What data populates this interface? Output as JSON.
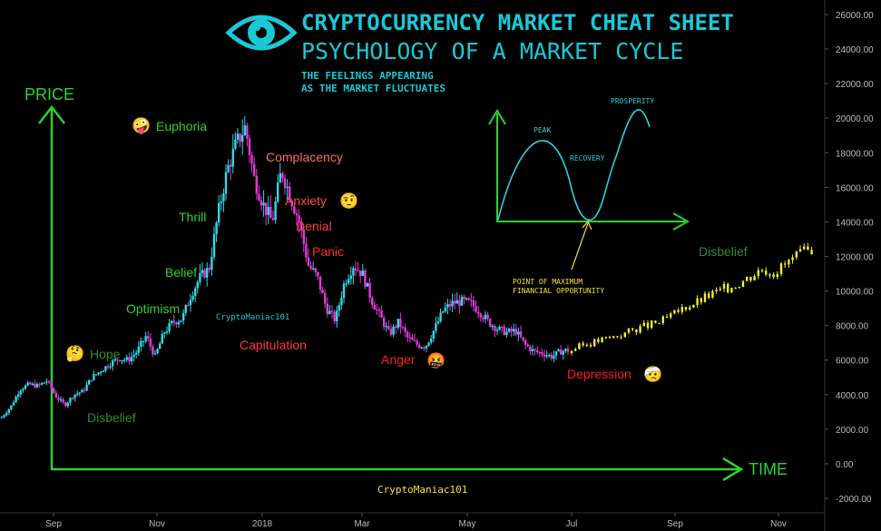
{
  "header": {
    "title": "CRYPTOCURRENCY MARKET CHEAT SHEET",
    "subtitle": "PSYCHOLOGY OF A MARKET CYCLE",
    "tagline_line1": "THE FEELINGS APPEARING",
    "tagline_line2": "AS THE MARKET FLUCTUATES",
    "logo_icon": "eye-icon"
  },
  "axes_labels": {
    "price": "PRICE",
    "time": "TIME"
  },
  "watermarks": {
    "top": "CryptoManiac101",
    "bottom": "CryptoManiac101"
  },
  "inset": {
    "peak": "PEAK",
    "recovery": "RECOVERY",
    "prosperity": "PROSPERITY",
    "note_line1": "POINT OF MAXIMUM",
    "note_line2": "FINANCIAL OPPORTUNITY"
  },
  "phases": [
    {
      "label": "Euphoria",
      "emoji": "🤪",
      "color": "#2fd12f"
    },
    {
      "label": "Thrill",
      "emoji": "😁",
      "color": "#2fd12f"
    },
    {
      "label": "Belief",
      "emoji": "😃",
      "color": "#2fd12f"
    },
    {
      "label": "Optimism",
      "emoji": "😊",
      "color": "#2fd12f"
    },
    {
      "label": "Hope",
      "emoji": "🤔",
      "color": "#2e8b2e"
    },
    {
      "label": "Disbelief",
      "emoji": "😟",
      "color": "#2e8b2e"
    },
    {
      "label": "Complacency",
      "emoji": "😌",
      "color": "#ff6b6b"
    },
    {
      "label": "Anxiety",
      "emoji": "🤨",
      "color": "#ff4d4d"
    },
    {
      "label": "Denial",
      "emoji": "😥",
      "color": "#ff4040"
    },
    {
      "label": "Panic",
      "emoji": "😱",
      "color": "#ff2a2a"
    },
    {
      "label": "Capitulation",
      "emoji": "😶",
      "color": "#ff3a3a"
    },
    {
      "label": "Anger",
      "emoji": "🤬",
      "color": "#ff2020"
    },
    {
      "label": "Depression",
      "emoji": "🤕",
      "color": "#ff1a1a"
    },
    {
      "label": "Disbelief",
      "emoji": "😟",
      "color": "#2e8b2e"
    }
  ],
  "colors": {
    "background": "#000000",
    "title": "#19c9d6",
    "axis_green": "#2fd12f",
    "watermark": "#f2e23a",
    "up_candle": "#31d8e6",
    "down_candle": "#e23ad8",
    "projection": "#f5f031"
  },
  "chart_data": {
    "type": "line",
    "x_ticks": [
      "Sep",
      "Nov",
      "2018",
      "Mar",
      "May",
      "Jul",
      "Sep",
      "Nov"
    ],
    "y_ticks": [
      "26000.00",
      "24000.00",
      "22000.00",
      "20000.00",
      "18000.00",
      "16000.00",
      "14000.00",
      "12000.00",
      "10000.00",
      "8000.00",
      "6000.00",
      "4000.00",
      "2000.00",
      "0.00",
      "-2000.00"
    ],
    "ylim": [
      -2000,
      26000
    ],
    "series": [
      {
        "values": [
          2700,
          3300,
          4300,
          4600,
          4500,
          4800,
          3900,
          3400,
          4000,
          4200,
          5000,
          5400,
          5800,
          6100,
          6000,
          6500,
          7400,
          6200,
          7600,
          8200,
          8400,
          9800,
          10800,
          11300,
          14500,
          17000,
          18500,
          19500,
          16500,
          15000,
          14000,
          17000,
          15500,
          14000,
          11500,
          10800,
          9000,
          8300,
          10500,
          11500,
          11000,
          9500,
          8500,
          7500,
          8200,
          7300,
          6900,
          6800,
          7800,
          8900,
          9300,
          9400,
          9300,
          8800,
          8200,
          7800,
          7600,
          7700,
          6900,
          6500,
          6400,
          6200,
          6500,
          6600
        ]
      },
      {
        "values": [
          6600,
          6900,
          7100,
          7300,
          7500,
          7800,
          8000,
          8200,
          8600,
          9100,
          9400,
          9800,
          10100,
          10400,
          10800,
          11300,
          11100,
          11600,
          12100,
          12400
        ]
      }
    ]
  }
}
